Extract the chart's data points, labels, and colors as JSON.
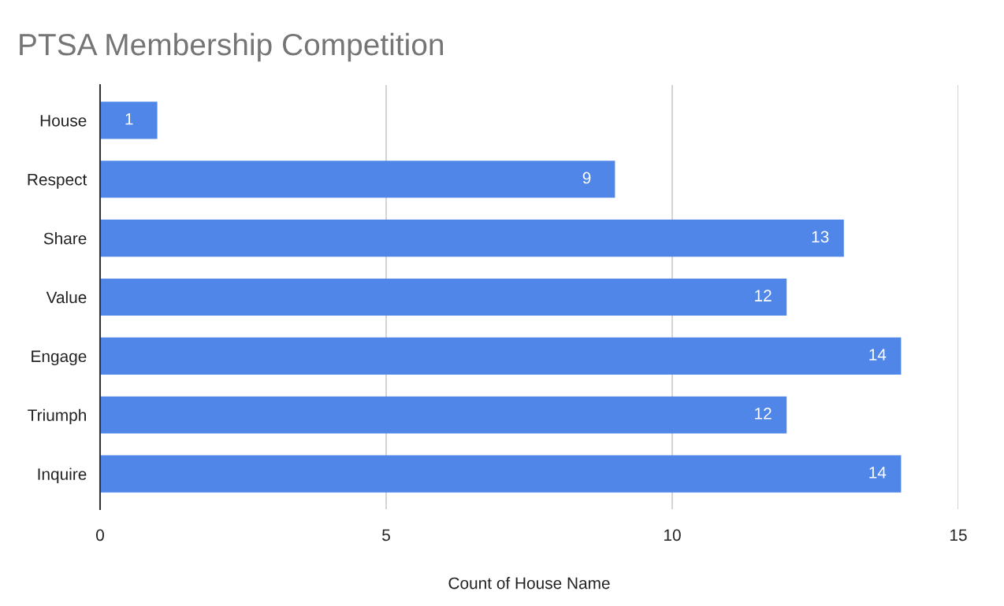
{
  "chart_data": {
    "type": "bar",
    "orientation": "horizontal",
    "title": "PTSA Membership Competition",
    "xlabel": "Count of House Name",
    "categories": [
      "House",
      "Respect",
      "Share",
      "Value",
      "Engage",
      "Triumph",
      "Inquire"
    ],
    "values": [
      1,
      9,
      13,
      12,
      14,
      12,
      14
    ],
    "color": "#4f86e8",
    "xlim": [
      0,
      15
    ],
    "xticks": [
      0,
      5,
      10,
      15
    ],
    "grid": "x",
    "data_labels": true,
    "legend": false
  }
}
